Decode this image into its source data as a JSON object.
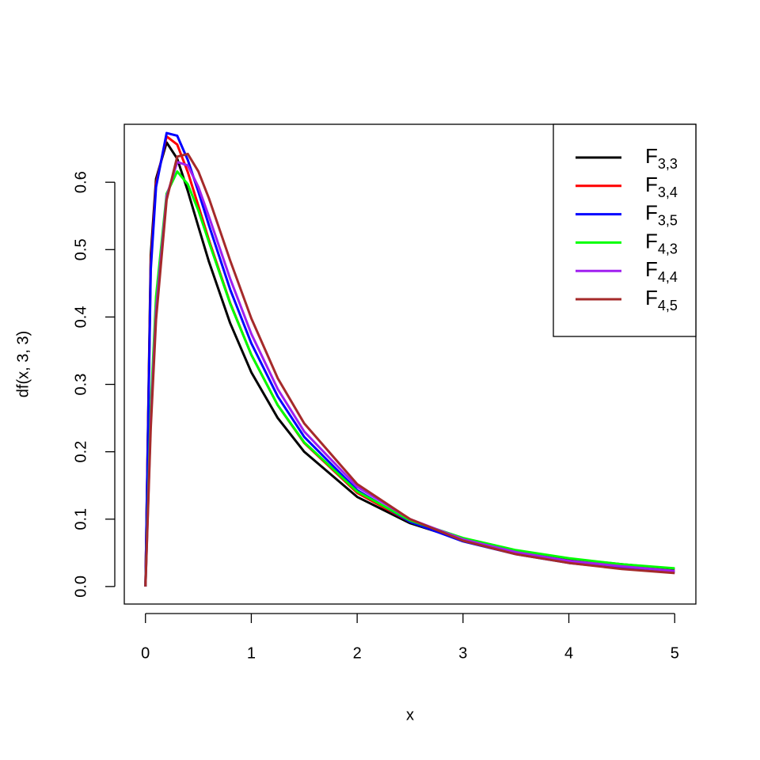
{
  "chart_data": {
    "type": "line",
    "xlabel": "x",
    "ylabel": "df(x, 3, 3)",
    "x": [
      0,
      0.05,
      0.1,
      0.2,
      0.3,
      0.4,
      0.5,
      0.6,
      0.8,
      1,
      1.25,
      1.5,
      2,
      2.5,
      3,
      3.5,
      4,
      4.5,
      5
    ],
    "series": [
      {
        "name": "F",
        "subscript": "3,3",
        "color": "#000000",
        "values": [
          0,
          0.492,
          0.605,
          0.659,
          0.635,
          0.587,
          0.534,
          0.482,
          0.391,
          0.318,
          0.25,
          0.2,
          0.133,
          0.094,
          0.069,
          0.052,
          0.041,
          0.033,
          0.026
        ]
      },
      {
        "name": "F",
        "subscript": "3,4",
        "color": "#ff0000",
        "values": [
          0,
          0.479,
          0.598,
          0.668,
          0.656,
          0.615,
          0.565,
          0.514,
          0.421,
          0.344,
          0.269,
          0.213,
          0.139,
          0.096,
          0.068,
          0.05,
          0.038,
          0.03,
          0.023
        ]
      },
      {
        "name": "F",
        "subscript": "3,5",
        "color": "#0000ff",
        "values": [
          0,
          0.47,
          0.593,
          0.673,
          0.669,
          0.633,
          0.586,
          0.536,
          0.441,
          0.361,
          0.282,
          0.222,
          0.143,
          0.096,
          0.067,
          0.048,
          0.035,
          0.027,
          0.021
        ]
      },
      {
        "name": "F",
        "subscript": "4,3",
        "color": "#00ff00",
        "values": [
          0,
          0.266,
          0.43,
          0.583,
          0.616,
          0.597,
          0.558,
          0.511,
          0.42,
          0.344,
          0.269,
          0.214,
          0.141,
          0.098,
          0.072,
          0.054,
          0.042,
          0.033,
          0.027
        ]
      },
      {
        "name": "F",
        "subscript": "4,4",
        "color": "#a020f0",
        "values": [
          0,
          0.247,
          0.41,
          0.579,
          0.63,
          0.625,
          0.593,
          0.549,
          0.457,
          0.375,
          0.293,
          0.23,
          0.148,
          0.1,
          0.07,
          0.051,
          0.038,
          0.03,
          0.023
        ]
      },
      {
        "name": "F",
        "subscript": "4,5",
        "color": "#a52a2a",
        "values": [
          0,
          0.235,
          0.396,
          0.574,
          0.638,
          0.642,
          0.616,
          0.576,
          0.484,
          0.398,
          0.309,
          0.242,
          0.152,
          0.1,
          0.068,
          0.048,
          0.035,
          0.026,
          0.02
        ]
      }
    ],
    "xlim": [
      -0.2,
      5.2
    ],
    "ylim": [
      -0.026,
      0.686
    ],
    "xticks": [
      0,
      1,
      2,
      3,
      4,
      5
    ],
    "yticks": [
      {
        "value": 0,
        "label": "0.0"
      },
      0.1,
      0.2,
      0.3,
      0.4,
      0.5,
      0.6
    ],
    "legend": "topright"
  }
}
